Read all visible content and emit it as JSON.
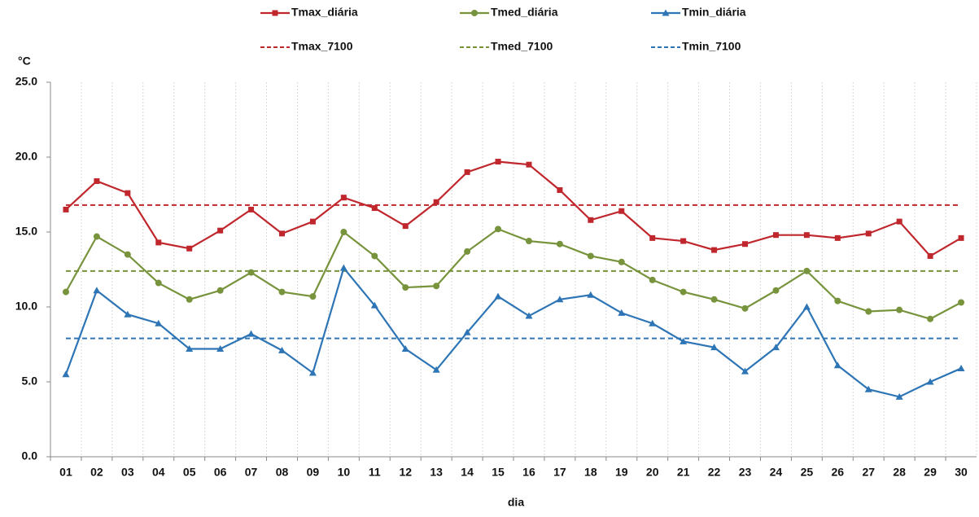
{
  "chart_data": {
    "type": "line",
    "y_unit": "°C",
    "x_label": "dia",
    "categories": [
      "01",
      "02",
      "03",
      "04",
      "05",
      "06",
      "07",
      "08",
      "09",
      "10",
      "11",
      "12",
      "13",
      "14",
      "15",
      "16",
      "17",
      "18",
      "19",
      "20",
      "21",
      "22",
      "23",
      "24",
      "25",
      "26",
      "27",
      "28",
      "29",
      "30"
    ],
    "series": [
      {
        "name": "Tmax_diária",
        "color": "#c0272d",
        "marker": "square",
        "values": [
          16.5,
          18.4,
          17.6,
          14.3,
          13.9,
          15.1,
          16.5,
          14.9,
          15.7,
          17.3,
          16.6,
          15.4,
          17.0,
          19.0,
          19.7,
          19.5,
          17.8,
          15.8,
          16.4,
          14.6,
          14.4,
          13.8,
          14.2,
          14.8,
          14.8,
          14.6,
          14.9,
          15.7,
          13.4,
          14.6
        ]
      },
      {
        "name": "Tmed_diária",
        "color": "#77933c",
        "marker": "circle",
        "values": [
          11.0,
          14.7,
          13.5,
          11.6,
          10.5,
          11.1,
          12.3,
          11.0,
          10.7,
          15.0,
          13.4,
          11.3,
          11.4,
          13.7,
          15.2,
          14.4,
          14.2,
          13.4,
          13.0,
          11.8,
          11.0,
          10.5,
          9.9,
          11.1,
          12.4,
          10.4,
          9.7,
          9.8,
          9.2,
          10.3
        ]
      },
      {
        "name": "Tmin_diária",
        "color": "#2e75b6",
        "marker": "triangle",
        "values": [
          5.5,
          11.1,
          9.5,
          8.9,
          7.2,
          7.2,
          8.2,
          7.1,
          5.6,
          12.6,
          10.1,
          7.2,
          5.8,
          8.3,
          10.7,
          9.4,
          10.5,
          10.8,
          9.6,
          8.9,
          7.7,
          7.3,
          5.7,
          7.3,
          10.0,
          6.1,
          4.5,
          4.0,
          5.0,
          5.9
        ]
      }
    ],
    "reference_lines": [
      {
        "name": "Tmax_7100",
        "color": "#c0272d",
        "value": 16.8
      },
      {
        "name": "Tmed_7100",
        "color": "#77933c",
        "value": 12.4
      },
      {
        "name": "Tmin_7100",
        "color": "#2e75b6",
        "value": 7.9
      }
    ],
    "ylim": [
      0,
      25
    ],
    "yticks": [
      {
        "value": 0,
        "label": "0.0"
      },
      {
        "value": 5,
        "label": "5.0"
      },
      {
        "value": 10,
        "label": "10.0"
      },
      {
        "value": 15,
        "label": "15.0"
      },
      {
        "value": 20,
        "label": "20.0"
      },
      {
        "value": 25,
        "label": "25.0"
      }
    ],
    "grid": "x"
  }
}
